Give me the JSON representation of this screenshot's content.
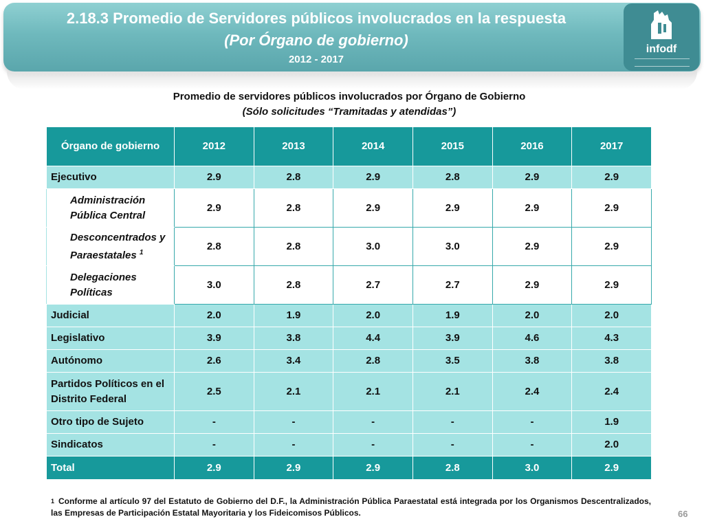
{
  "header": {
    "title_line1": "2.18.3 Promedio de Servidores públicos involucrados en la respuesta",
    "title_line2": "(Por Órgano de gobierno)",
    "title_line3": "2012 - 2017",
    "logo_text": "infodf",
    "logo_icon": "city-emblem-icon"
  },
  "table": {
    "title": "Promedio de servidores públicos involucrados por Órgano de Gobierno",
    "subtitle": "(Sólo solicitudes “Tramitadas y atendidas”)",
    "header_label": "Órgano de gobierno",
    "years": [
      "2012",
      "2013",
      "2014",
      "2015",
      "2016",
      "2017"
    ],
    "rows": [
      {
        "label": "Ejecutivo",
        "values": [
          "2.9",
          "2.8",
          "2.9",
          "2.8",
          "2.9",
          "2.9"
        ]
      },
      {
        "label": "Administración Pública Central",
        "values": [
          "2.9",
          "2.8",
          "2.9",
          "2.9",
          "2.9",
          "2.9"
        ]
      },
      {
        "label": "Desconcentrados y Paraestatales",
        "note": "1",
        "values": [
          "2.8",
          "2.8",
          "3.0",
          "3.0",
          "2.9",
          "2.9"
        ]
      },
      {
        "label": "Delegaciones Políticas",
        "values": [
          "3.0",
          "2.8",
          "2.7",
          "2.7",
          "2.9",
          "2.9"
        ]
      },
      {
        "label": "Judicial",
        "values": [
          "2.0",
          "1.9",
          "2.0",
          "1.9",
          "2.0",
          "2.0"
        ]
      },
      {
        "label": "Legislativo",
        "values": [
          "3.9",
          "3.8",
          "4.4",
          "3.9",
          "4.6",
          "4.3"
        ]
      },
      {
        "label": "Autónomo",
        "values": [
          "2.6",
          "3.4",
          "2.8",
          "3.5",
          "3.8",
          "3.8"
        ]
      },
      {
        "label": "Partidos Políticos en el Distrito Federal",
        "values": [
          "2.5",
          "2.1",
          "2.1",
          "2.1",
          "2.4",
          "2.4"
        ]
      },
      {
        "label": "Otro tipo de Sujeto",
        "values": [
          "-",
          "-",
          "-",
          "-",
          "-",
          "1.9"
        ]
      },
      {
        "label": "Sindicatos",
        "values": [
          "-",
          "-",
          "-",
          "-",
          "-",
          "2.0"
        ]
      },
      {
        "label": "Total",
        "values": [
          "2.9",
          "2.9",
          "2.9",
          "2.8",
          "3.0",
          "2.9"
        ]
      }
    ]
  },
  "footnote": {
    "mark": "1",
    "text": "Conforme al artículo 97 del Estatuto de Gobierno del D.F., la Administración Pública Paraestatal está integrada por los Organismos Descentralizados, las Empresas de Participación Estatal Mayoritaria y los Fideicomisos Públicos."
  },
  "page_number": "66",
  "colors": {
    "banner": "#6fb9bd",
    "header_cell": "#17999b",
    "light_row": "#a4e3e3",
    "sub_row": "#ffffff"
  }
}
